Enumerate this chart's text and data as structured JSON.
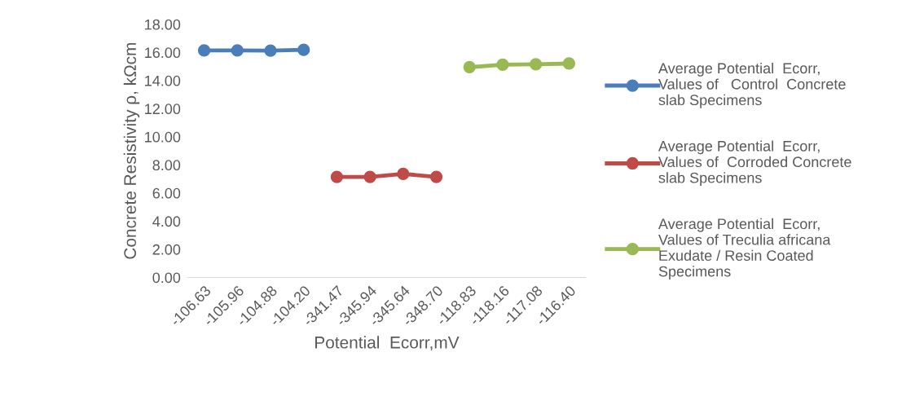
{
  "chart_data": {
    "type": "line",
    "xlabel": "Potential  Ecorr,mV",
    "ylabel": "Concrete Resistivity ρ, kΩcm",
    "categories": [
      "-106.63",
      "-105.96",
      "-104.88",
      "-104.20",
      "-341.47",
      "-345.94",
      "-345.64",
      "-348.70",
      "-118.83",
      "-118.16",
      "-117.08",
      "-116.40"
    ],
    "series": [
      {
        "name": "Average Potential  Ecorr,\nValues of   Control  Concrete\nslab Specimens",
        "color": "#4a7ebb",
        "values": [
          16.14,
          16.14,
          16.13,
          16.19,
          null,
          null,
          null,
          null,
          null,
          null,
          null,
          null
        ]
      },
      {
        "name": "Average Potential  Ecorr,\nValues of  Corroded Concrete\nslab Specimens",
        "color": "#be4b48",
        "values": [
          null,
          null,
          null,
          null,
          7.15,
          7.15,
          7.36,
          7.15,
          null,
          null,
          null,
          null
        ]
      },
      {
        "name": "Average Potential  Ecorr,\nValues of Treculia africana\nExudate / Resin Coated\nSpecimens",
        "color": "#98b954",
        "values": [
          null,
          null,
          null,
          null,
          null,
          null,
          null,
          null,
          14.95,
          15.13,
          15.16,
          15.21
        ]
      }
    ],
    "ylim": [
      0,
      18
    ],
    "yticks": [
      {
        "value": 0,
        "label": "0.00"
      },
      {
        "value": 2,
        "label": "2.00"
      },
      {
        "value": 4,
        "label": "4.00"
      },
      {
        "value": 6,
        "label": "6.00"
      },
      {
        "value": 8,
        "label": "8.00"
      },
      {
        "value": 10,
        "label": "10.00"
      },
      {
        "value": 12,
        "label": "12.00"
      },
      {
        "value": 14,
        "label": "14.00"
      },
      {
        "value": 16,
        "label": "16.00"
      },
      {
        "value": 18,
        "label": "18.00"
      }
    ],
    "grid": false,
    "legend": "right",
    "marker": "circle",
    "line_style": "solid"
  }
}
